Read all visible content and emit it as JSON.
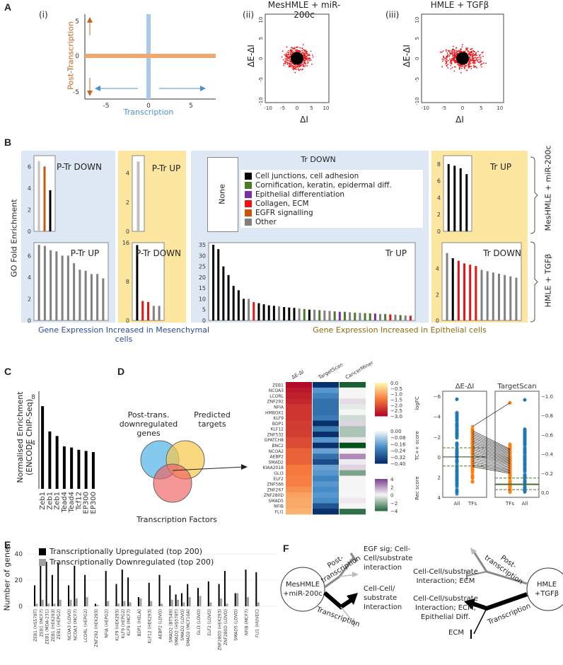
{
  "panel_labels": {
    "a": "A",
    "b": "B",
    "c": "C",
    "d": "D",
    "e": "E",
    "f": "F"
  },
  "panel_a": {
    "i": {
      "tag": "(i)",
      "ylabel": "Post-Transcription",
      "xlabel": "Transcription",
      "xticks": [
        "-5",
        "0",
        "5"
      ],
      "yticks": [
        "5",
        "0",
        "-5"
      ],
      "colors": {
        "post": "#f0a870",
        "trans": "#a9c9ea",
        "arrow_orange": "#c8641e",
        "arrow_blue": "#4a90d0"
      }
    },
    "ii": {
      "tag": "(ii)",
      "title": "MesHMLE + miR-200c",
      "xlabel": "ΔI",
      "ylabel": "ΔE-ΔI",
      "xticks": [
        "-10",
        "-5",
        "0",
        "5",
        "10"
      ],
      "yticks": [
        "10",
        "5",
        "0",
        "-5",
        "-10"
      ]
    },
    "iii": {
      "tag": "(iii)",
      "title": "HMLE + TGFβ",
      "xlabel": "ΔI",
      "ylabel": "ΔE-ΔI",
      "xticks": [
        "-10",
        "-5",
        "0",
        "5",
        "10"
      ],
      "yticks": [
        "10",
        "5",
        "0",
        "-5",
        "-10"
      ]
    }
  },
  "panel_b": {
    "ylabel": "GO Fold Enrichment",
    "row_labels": [
      "MesHMLE + miR-200c",
      "HMLE + TGFβ"
    ],
    "bottom_left": "Gene Expression Increased in Mesenchymal cells",
    "bottom_right": "Gene Expression Increased in Epithelial cells",
    "none_label": "None",
    "legend": [
      {
        "label": "Cell junctions, cell adhesion",
        "color": "#000000"
      },
      {
        "label": "Cornification, keratin, epidermal diff.",
        "color": "#4a7a2a"
      },
      {
        "label": "Epithelial differentiation",
        "color": "#7a2ea0"
      },
      {
        "label": "Collagen, ECM",
        "color": "#ee1111"
      },
      {
        "label": "EGFR signalling",
        "color": "#c8560e"
      },
      {
        "label": "Other",
        "color": "#808080"
      }
    ]
  },
  "chart_data": [
    {
      "id": "b1",
      "type": "bar",
      "title": "P-Tr DOWN",
      "values": [
        6.5,
        6.0,
        3.8
      ],
      "colors": [
        "#c0c0c0",
        "#c8560e",
        "#000000"
      ],
      "ylim": [
        0,
        7
      ],
      "yticks": [
        0,
        2,
        4,
        6
      ]
    },
    {
      "id": "b2",
      "type": "bar",
      "title": "P-Tr UP",
      "values": [
        4.8
      ],
      "colors": [
        "#c0c0c0"
      ],
      "ylim": [
        0,
        5.2
      ],
      "yticks": [
        0,
        2,
        4
      ]
    },
    {
      "id": "b3",
      "type": "bar",
      "title": "Tr DOWN",
      "values": []
    },
    {
      "id": "b4",
      "type": "bar",
      "title": "Tr UP",
      "values": [
        8.0,
        7.8,
        7.5,
        6.8
      ],
      "colors": [
        "#000",
        "#000",
        "#000",
        "#000"
      ],
      "ylim": [
        0,
        9
      ],
      "yticks": [
        0,
        2,
        4,
        6,
        8
      ]
    },
    {
      "id": "b5",
      "type": "bar",
      "title": "P-Tr UP",
      "values": [
        7.0,
        6.9,
        6.5,
        6.4,
        6.0,
        6.0,
        5.3,
        4.7,
        4.6,
        4.3,
        4.3,
        3.9
      ],
      "colors": [
        "#808080"
      ],
      "ylim": [
        0,
        7.2
      ],
      "yticks": [
        0,
        2,
        4,
        6
      ]
    },
    {
      "id": "b6",
      "type": "bar",
      "title": "P-Tr DOWN",
      "values": [
        15.5,
        4.0,
        3.8,
        3.0,
        3.0
      ],
      "colors": [
        "#000000",
        "#ee1111",
        "#ee1111",
        "#808080",
        "#808080"
      ],
      "ylim": [
        0,
        16
      ],
      "yticks": [
        0,
        8,
        16
      ]
    },
    {
      "id": "b7",
      "type": "bar",
      "title": "Tr UP",
      "values": [
        35,
        33,
        25,
        21,
        16,
        14,
        10,
        10,
        8.5,
        8,
        7.5,
        7,
        6.8,
        6.5,
        6.2,
        6,
        5.8,
        5.5,
        5.3,
        5,
        5,
        4.8,
        4.6,
        4.4,
        4.2,
        4,
        4,
        3.8,
        3.6,
        3.5,
        3.4,
        3.3,
        3.2,
        3,
        3,
        2.8,
        2.7,
        2.5,
        2.3,
        2.2
      ],
      "colors": [
        "#000",
        "#000",
        "#000",
        "#000",
        "#000",
        "#000",
        "#000",
        "#808080",
        "#ee1111",
        "#000",
        "#000",
        "#000",
        "#000",
        "#808080",
        "#000",
        "#000",
        "#000",
        "#808080",
        "#4a7a2a",
        "#000",
        "#808080",
        "#4a7a2a",
        "#808080",
        "#808080",
        "#4a7a2a",
        "#7a2ea0",
        "#4a7a2a",
        "#808080",
        "#4a7a2a",
        "#808080",
        "#4a7a2a",
        "#4a7a2a",
        "#7a2ea0",
        "#808080",
        "#4a7a2a",
        "#ee1111",
        "#808080",
        "#4a7a2a",
        "#808080",
        "#ee1111"
      ],
      "ylim": [
        0,
        36
      ],
      "yticks": [
        0,
        5,
        10,
        15,
        20,
        25,
        30,
        35
      ]
    },
    {
      "id": "b8",
      "type": "bar",
      "title": "Tr DOWN",
      "values": [
        5.2,
        4.8,
        4.6,
        4.4,
        4.3,
        4.2,
        3.9,
        3.8,
        3.7,
        3.6,
        3.5,
        3.4,
        3.3
      ],
      "colors": [
        "#808080",
        "#000000",
        "#ee1111",
        "#ee1111",
        "#ee1111",
        "#ee1111",
        "#808080",
        "#808080",
        "#808080",
        "#808080",
        "#808080",
        "#808080",
        "#808080"
      ],
      "ylim": [
        0,
        6
      ],
      "yticks": [
        0,
        2,
        4
      ]
    },
    {
      "id": "c",
      "type": "bar",
      "title": "",
      "ylabel": "Normalised Enrichment (ENCODE ChIP-Seq)",
      "categories": [
        "Zeb1",
        "Zeb1",
        "Zeb1",
        "Tead4",
        "Tead4",
        "Tcf12",
        "EP300",
        "EP300"
      ],
      "values": [
        7.2,
        5.0,
        4.6,
        3.7,
        3.6,
        3.4,
        3.3,
        3.2
      ],
      "ylim": [
        0,
        8.5
      ],
      "yticks": [
        4,
        8
      ]
    },
    {
      "id": "d_heatmap",
      "type": "heatmap",
      "columns": [
        "ΔE-ΔI",
        "TargetScan",
        "CancerMiner"
      ],
      "rows": [
        "ZEB1",
        "NCOA3",
        "LCORL",
        "ZNF292",
        "NFIA",
        "HMBOX1",
        "KLF9",
        "BDP1",
        "KLF12",
        "ZNF532",
        "GPATCH8",
        "BNC2",
        "NCOA2",
        "AEBP2",
        "SMAD2",
        "KIAA2018",
        "GLI3",
        "ELF2",
        "ZNF566",
        "ZNF267",
        "ZNF280D",
        "SMAD5",
        "NFIB",
        "FLI1"
      ],
      "de_di": [
        -3.0,
        -2.8,
        -2.7,
        -2.6,
        -2.4,
        -2.4,
        -2.4,
        -2.3,
        -2.3,
        -2.3,
        -2.1,
        -2.1,
        -1.8,
        -1.8,
        -1.8,
        -1.5,
        -1.5,
        -1.4,
        -1.4,
        -1.2,
        -1.0,
        -0.9,
        -0.9,
        -0.8
      ],
      "targetscan": [
        -0.4,
        -0.18,
        -0.22,
        -0.26,
        -0.26,
        -0.26,
        -0.24,
        -0.4,
        -0.24,
        -0.4,
        -0.18,
        -0.4,
        -0.16,
        -0.26,
        -0.34,
        -0.16,
        -0.18,
        -0.22,
        -0.18,
        -0.2,
        -0.18,
        -0.2,
        -0.32,
        -0.4
      ],
      "cancerminer": [
        -4.5,
        0,
        0,
        0.6,
        -0.3,
        0,
        -0.8,
        0.8,
        -1.5,
        -1.5,
        0.3,
        -5,
        0,
        2.5,
        0.2,
        0.8,
        -2.5,
        0,
        0,
        0,
        0,
        0.3,
        0,
        -4
      ],
      "colorbars": [
        {
          "ticks": [
            "0.0",
            "−0.5",
            "−1.0",
            "−1.5",
            "−2.0",
            "−2.5",
            "−3.0"
          ]
        },
        {
          "ticks": [
            "0.00",
            "−0.08",
            "−0.16",
            "−0.24",
            "−0.32",
            "−0.40"
          ]
        },
        {
          "ticks": [
            "4",
            "2",
            "0",
            "−2",
            "−4"
          ]
        }
      ]
    },
    {
      "id": "d_strip",
      "type": "scatter",
      "titles": [
        "ΔE-ΔI",
        "TargetScan"
      ],
      "xticks_left": [
        "All",
        "TFs"
      ],
      "xticks_right": [
        "TFs",
        "All"
      ],
      "yticks_left": [
        "−6",
        "−4",
        "−2",
        "0",
        "2",
        "4"
      ],
      "yticks_right": [
        "−1.0",
        "−0.8",
        "−0.6",
        "−0.4",
        "−0.2",
        "0.0"
      ],
      "ylabels": [
        "logFC",
        "TC++ score",
        "Rec score"
      ],
      "left_ylim": [
        -6.5,
        4
      ],
      "right_ylim": [
        -1.05,
        0.05
      ],
      "left_thresholds": [
        -0.9,
        0,
        0.9
      ],
      "right_thresholds": [
        -0.15,
        -0.085,
        -0.03
      ],
      "all_color": "#1f77b4",
      "tf_color": "#ff7f0e",
      "threshold_color": "#4a7a2a"
    },
    {
      "id": "e",
      "type": "bar",
      "legend": [
        "Transcriptionally Upregulated (top 200)",
        "Transcriptionally Downregulated (top 200)"
      ],
      "ylabel": "Number of genes",
      "ylim": [
        0,
        40
      ],
      "yticks": [
        0,
        20,
        40
      ],
      "categories": [
        "ZEB1 (HS578T)",
        "ZEB1 (MCF7)",
        "ZEB1 (MDA-231)",
        "ZEB1 (HEK293)",
        "ZEB1 (HEPG2)",
        "NCOA3 (LOVO)",
        "NCOA3 (MCF7)",
        "LCORL (HEPG2)",
        "ZNF292 (HEK293)",
        "NFIA (HEPG2)",
        "KLF9 (HEK293)",
        "KLF9 (HEPG2)",
        "KLF9 (MCF7)",
        "BDP1 (HELA)",
        "KLF12 (HEK293)",
        "AEBP2 (LOVO)",
        "SMAD2 (BT549)",
        "SMAD2 (HS578T)",
        "SMAD2 (LOVO)",
        "SMAD2 (MCF10A)",
        "GLI3 (LOVO)",
        "ELF2 (LOVO)",
        "ZNF280D (HEK293)",
        "ZNF280D (LOVO)",
        "SMAD5 (LOVO)",
        "NFIB (MCF7)",
        "FLI1 (HUVEC)"
      ],
      "series": [
        {
          "name": "Transcriptionally Upregulated (top 200)",
          "color": "#000000",
          "values": [
            16,
            34,
            34,
            24,
            33,
            16,
            31,
            24,
            2,
            27,
            17,
            28,
            22,
            7,
            18,
            24,
            16,
            9,
            10,
            17,
            14,
            19,
            17,
            27,
            10,
            28,
            26
          ]
        },
        {
          "name": "Transcriptionally Downregulated (top 200)",
          "color": "#a0a0a0",
          "values": [
            2,
            5,
            2,
            2,
            5,
            5,
            6,
            7,
            1,
            4,
            2,
            4,
            3,
            6,
            4,
            2,
            5,
            5,
            3,
            7,
            8,
            3,
            6,
            2,
            10,
            7,
            3
          ]
        }
      ],
      "groups": [
        5,
        2,
        1,
        1,
        1,
        3,
        1,
        1,
        1,
        4,
        1,
        1,
        2,
        1,
        1,
        1
      ]
    }
  ],
  "panel_d": {
    "venn": {
      "set1": "Post-trans. downregulated genes",
      "set2": "Predicted targets",
      "set3": "Transcription Factors",
      "colors": [
        "#5bb8e8",
        "#f8c84a",
        "#f06060"
      ]
    }
  },
  "panel_f": {
    "left_node": "MesHMLE +miR-200c",
    "right_node": "HMLE +TGFβ",
    "post_label": "Post-transcription",
    "trans_label": "Transcription",
    "left_post_target": "EGF sig; Cell-Cell/substrate interaction",
    "left_trans_target": "Cell-Cell/ substrate Interaction",
    "right_post_target": "Cell-Cell/substrate Interaction; ECM",
    "right_trans_target": "Cell-Cell/substrate Interaction; ECM; Epithelial Diff.",
    "right_trans_ecm": "ECM"
  }
}
